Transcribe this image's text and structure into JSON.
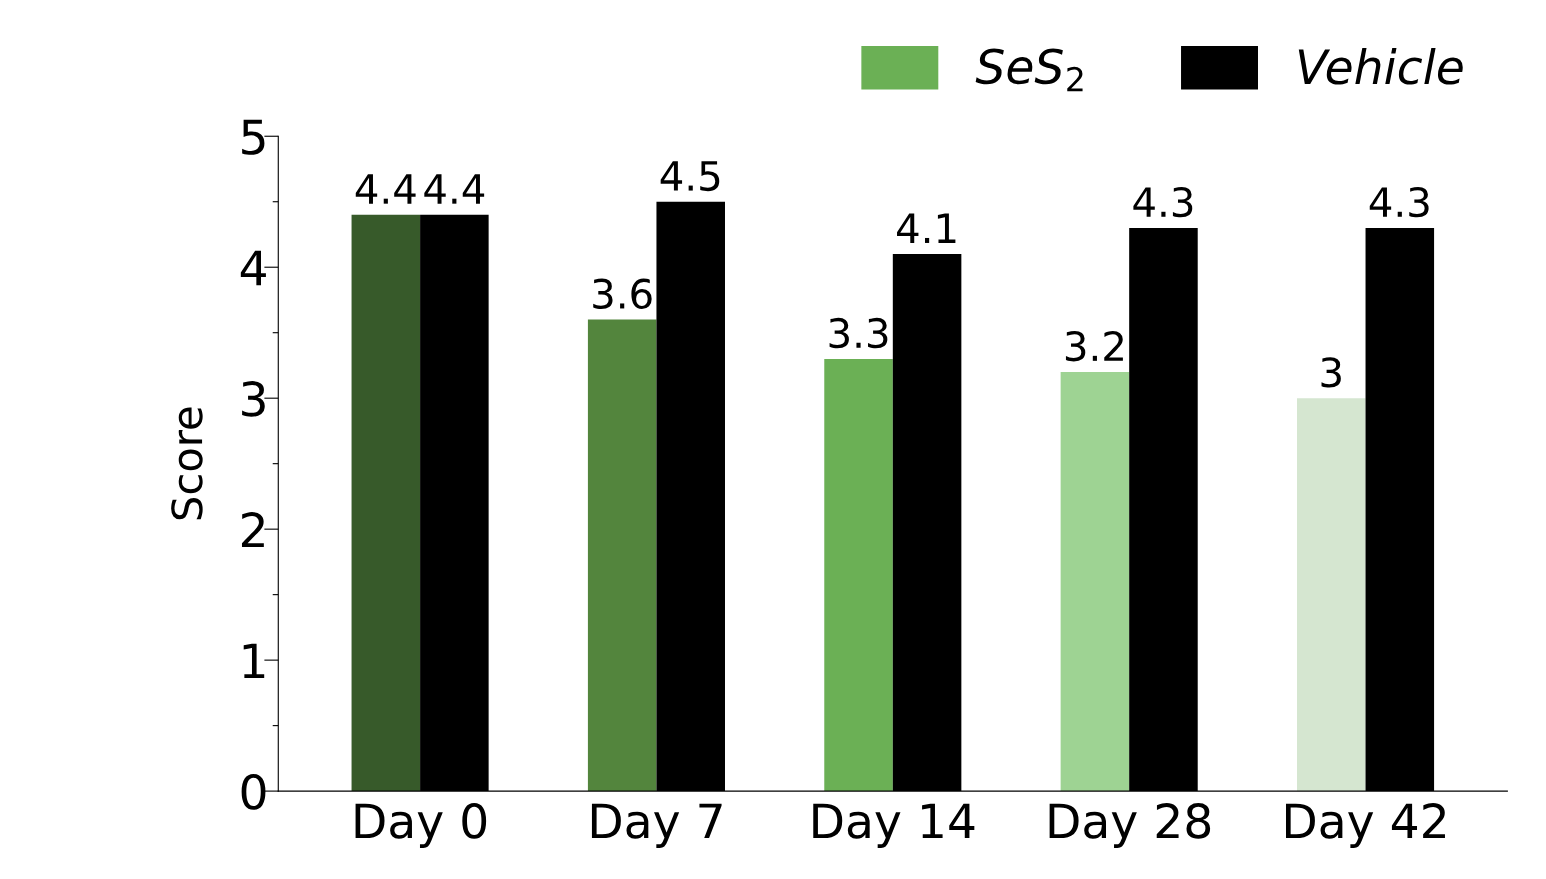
{
  "chart_data": {
    "type": "bar",
    "ylabel": "Score",
    "categories": [
      "Day 0",
      "Day 7",
      "Day 14",
      "Day 28",
      "Day 42"
    ],
    "series": [
      {
        "name": "SeS$_{2}$",
        "color": "#6bb055",
        "colors": [
          "#375a2a",
          "#53853d",
          "#6bb055",
          "#9ed393",
          "#d5e6d0"
        ],
        "values": [
          4.4,
          3.6,
          3.3,
          3.2,
          3
        ]
      },
      {
        "name": "Vehicle",
        "color": "#000000",
        "values": [
          4.4,
          4.5,
          4.1,
          4.3,
          4.3
        ]
      }
    ],
    "ylim": [
      0,
      5
    ],
    "yticks": [
      0,
      {
        "value": 0.5,
        "label": null
      },
      1,
      {
        "value": 1.5,
        "label": null
      },
      2,
      {
        "value": 2.5,
        "label": null
      },
      3,
      {
        "value": 3.5,
        "label": null
      },
      4,
      {
        "value": 4.5,
        "label": null
      },
      5
    ],
    "data_labels": true,
    "legend": "top right",
    "grid": false
  }
}
